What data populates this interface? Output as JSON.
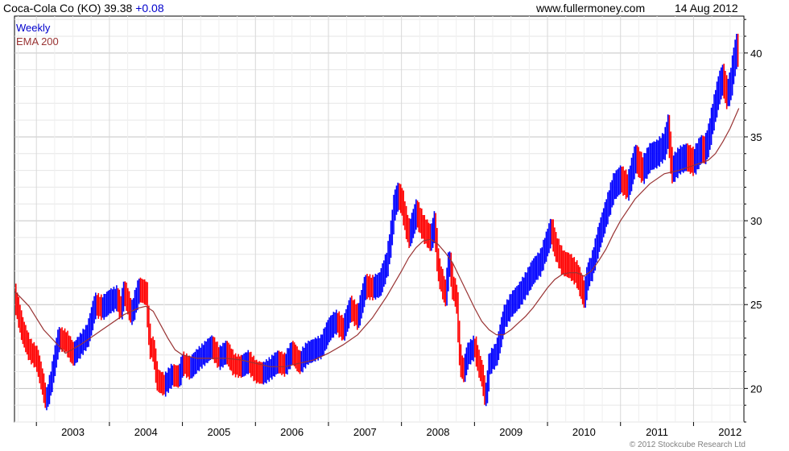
{
  "header": {
    "name": "Coca-Cola Co (KO)",
    "price": "39.38",
    "change": "+0.08",
    "site": "www.fullermoney.com",
    "date": "14 Aug 2012"
  },
  "footer": {
    "credit": "© 2012 Stockcube Research Ltd"
  },
  "chart_data": {
    "type": "line",
    "title": "",
    "xlabel": "",
    "ylabel": "",
    "xlim": [
      2002.7,
      2012.69
    ],
    "ylim": [
      18,
      42.2
    ],
    "x_ticks": [
      "2003",
      "2004",
      "2005",
      "2006",
      "2007",
      "2008",
      "2009",
      "2010",
      "2011",
      "2012"
    ],
    "y_ticks": [
      20,
      25,
      30,
      35,
      40
    ],
    "grid": true,
    "legend": "top-left",
    "colors": {
      "up": "#0000ff",
      "down": "#ff0000",
      "ema": "#993333",
      "grid": "#d0d0d0"
    },
    "series": [
      {
        "name": "Weekly",
        "x": [
          2002.7,
          2002.8,
          2002.9,
          2003.0,
          2003.08,
          2003.13,
          2003.2,
          2003.3,
          2003.4,
          2003.5,
          2003.6,
          2003.7,
          2003.8,
          2003.9,
          2004.0,
          2004.1,
          2004.15,
          2004.2,
          2004.3,
          2004.4,
          2004.5,
          2004.55,
          2004.6,
          2004.65,
          2004.75,
          2004.85,
          2004.95,
          2005.0,
          2005.1,
          2005.2,
          2005.3,
          2005.4,
          2005.5,
          2005.6,
          2005.7,
          2005.8,
          2005.9,
          2006.0,
          2006.1,
          2006.2,
          2006.3,
          2006.4,
          2006.5,
          2006.6,
          2006.7,
          2006.8,
          2006.9,
          2007.0,
          2007.1,
          2007.2,
          2007.3,
          2007.4,
          2007.5,
          2007.6,
          2007.7,
          2007.8,
          2007.85,
          2007.9,
          2007.95,
          2008.0,
          2008.05,
          2008.1,
          2008.2,
          2008.3,
          2008.4,
          2008.45,
          2008.5,
          2008.6,
          2008.65,
          2008.7,
          2008.75,
          2008.8,
          2008.85,
          2008.9,
          2009.0,
          2009.05,
          2009.1,
          2009.15,
          2009.2,
          2009.3,
          2009.4,
          2009.5,
          2009.6,
          2009.7,
          2009.8,
          2009.9,
          2010.0,
          2010.05,
          2010.1,
          2010.2,
          2010.3,
          2010.4,
          2010.5,
          2010.55,
          2010.6,
          2010.7,
          2010.8,
          2010.9,
          2011.0,
          2011.1,
          2011.2,
          2011.3,
          2011.4,
          2011.5,
          2011.6,
          2011.65,
          2011.7,
          2011.8,
          2011.9,
          2012.0,
          2012.1,
          2012.15,
          2012.2,
          2012.25,
          2012.3,
          2012.35,
          2012.4,
          2012.45,
          2012.5,
          2012.55,
          2012.6,
          2012.62
        ],
        "values": [
          25.5,
          23.5,
          22.3,
          21.8,
          20.3,
          19.2,
          20.5,
          23.0,
          22.8,
          22.0,
          22.6,
          23.2,
          25.0,
          24.8,
          25.2,
          25.4,
          24.7,
          25.8,
          24.4,
          25.9,
          25.7,
          22.5,
          22.3,
          20.5,
          20.2,
          20.8,
          20.7,
          21.5,
          21.2,
          21.7,
          22.1,
          22.5,
          21.8,
          22.2,
          21.4,
          21.3,
          21.6,
          21.0,
          20.9,
          21.2,
          21.6,
          21.4,
          22.2,
          21.5,
          22.1,
          22.3,
          22.5,
          23.5,
          24.0,
          23.5,
          24.8,
          24.2,
          26.1,
          26.0,
          26.2,
          27.5,
          29.0,
          31.0,
          31.5,
          31.2,
          30.0,
          29.1,
          30.5,
          29.5,
          28.9,
          29.8,
          27.1,
          25.5,
          27.8,
          26.0,
          25.5,
          21.5,
          21.0,
          22.0,
          22.5,
          21.5,
          20.8,
          19.3,
          21.5,
          22.1,
          24.2,
          25.0,
          25.5,
          26.2,
          27.0,
          27.5,
          28.8,
          29.5,
          28.5,
          27.5,
          27.3,
          26.8,
          25.5,
          26.8,
          27.2,
          29.0,
          30.5,
          32.0,
          32.5,
          32.0,
          33.8,
          33.0,
          33.8,
          34.0,
          34.5,
          35.5,
          33.0,
          33.6,
          33.8,
          33.5,
          34.3,
          34.2,
          34.8,
          36.0,
          37.0,
          38.0,
          38.5,
          37.5,
          38.0,
          39.5,
          40.5,
          39.4
        ]
      },
      {
        "name": "EMA 200",
        "x": [
          2002.7,
          2002.9,
          2003.0,
          2003.1,
          2003.25,
          2003.4,
          2003.6,
          2003.8,
          2004.0,
          2004.2,
          2004.4,
          2004.5,
          2004.6,
          2004.7,
          2004.8,
          2004.9,
          2005.0,
          2005.2,
          2005.4,
          2005.6,
          2005.8,
          2006.0,
          2006.2,
          2006.4,
          2006.6,
          2006.8,
          2007.0,
          2007.2,
          2007.4,
          2007.6,
          2007.8,
          2008.0,
          2008.1,
          2008.2,
          2008.3,
          2008.4,
          2008.5,
          2008.6,
          2008.7,
          2008.8,
          2008.9,
          2009.0,
          2009.1,
          2009.2,
          2009.3,
          2009.4,
          2009.5,
          2009.6,
          2009.7,
          2009.8,
          2009.9,
          2010.0,
          2010.1,
          2010.2,
          2010.3,
          2010.4,
          2010.5,
          2010.6,
          2010.7,
          2010.8,
          2010.9,
          2011.0,
          2011.2,
          2011.4,
          2011.6,
          2011.8,
          2012.0,
          2012.2,
          2012.3,
          2012.4,
          2012.5,
          2012.62
        ],
        "values": [
          25.8,
          24.9,
          24.2,
          23.5,
          22.8,
          22.1,
          22.6,
          23.2,
          23.8,
          24.4,
          24.8,
          24.9,
          24.6,
          23.8,
          23.0,
          22.3,
          22.0,
          21.8,
          21.8,
          21.8,
          21.7,
          21.5,
          21.3,
          21.3,
          21.5,
          21.7,
          22.1,
          22.6,
          23.2,
          24.2,
          25.5,
          27.0,
          27.8,
          28.4,
          28.8,
          28.9,
          28.6,
          28.1,
          27.5,
          26.6,
          25.7,
          24.8,
          24.0,
          23.5,
          23.2,
          23.2,
          23.5,
          23.9,
          24.3,
          24.8,
          25.4,
          26.0,
          26.5,
          26.8,
          26.9,
          26.9,
          26.7,
          27.0,
          27.6,
          28.3,
          29.2,
          30.0,
          31.3,
          32.2,
          32.8,
          33.0,
          33.3,
          33.6,
          34.0,
          34.7,
          35.5,
          36.7
        ]
      }
    ]
  }
}
